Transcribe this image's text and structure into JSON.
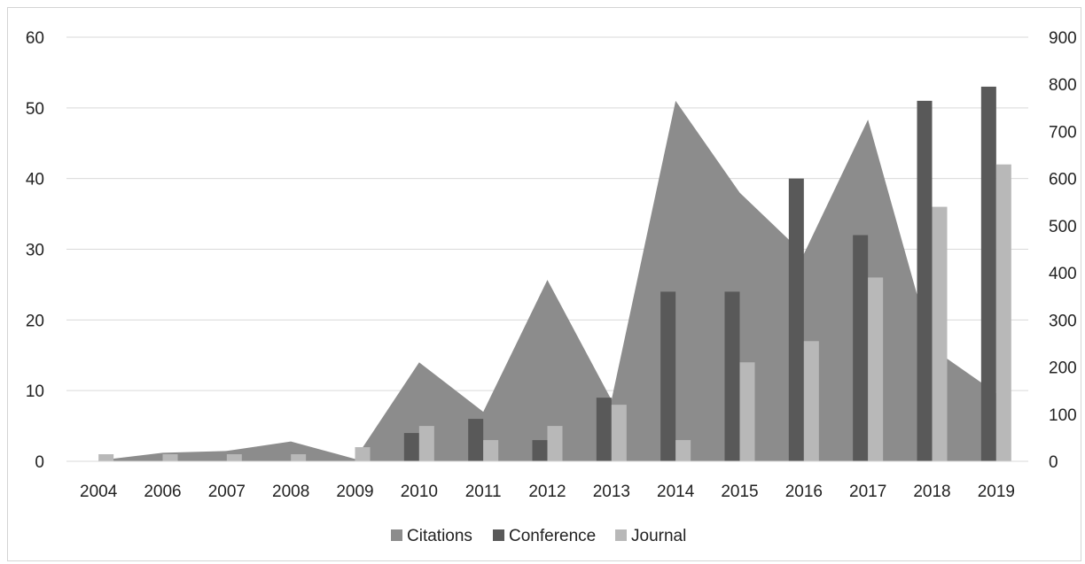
{
  "chart_data": {
    "type": "bar",
    "categories": [
      "2004",
      "2006",
      "2007",
      "2008",
      "2009",
      "2010",
      "2011",
      "2012",
      "2013",
      "2014",
      "2015",
      "2016",
      "2017",
      "2018",
      "2019"
    ],
    "series": [
      {
        "name": "Citations",
        "kind": "area",
        "axis": "right",
        "color": "#8c8c8c",
        "values": [
          2,
          18,
          22,
          42,
          5,
          210,
          105,
          385,
          130,
          765,
          570,
          440,
          725,
          240,
          145
        ]
      },
      {
        "name": "Conference",
        "kind": "bar",
        "axis": "left",
        "color": "#595959",
        "values": [
          0,
          0,
          0,
          0,
          0,
          4,
          6,
          3,
          9,
          24,
          24,
          40,
          32,
          51,
          53
        ]
      },
      {
        "name": "Journal",
        "kind": "bar",
        "axis": "left",
        "color": "#b8b8b8",
        "values": [
          1,
          1,
          1,
          1,
          2,
          5,
          3,
          5,
          8,
          3,
          14,
          17,
          26,
          36,
          42
        ]
      }
    ],
    "y_left": {
      "ticks": [
        "0",
        "10",
        "20",
        "30",
        "40",
        "50",
        "60"
      ],
      "range": [
        0,
        60
      ]
    },
    "y_right": {
      "ticks": [
        "0",
        "100",
        "200",
        "300",
        "400",
        "500",
        "600",
        "700",
        "800",
        "900"
      ],
      "range": [
        0,
        900
      ]
    },
    "grid": true,
    "legend_position": "bottom",
    "legend": [
      "Citations",
      "Conference",
      "Journal"
    ]
  }
}
